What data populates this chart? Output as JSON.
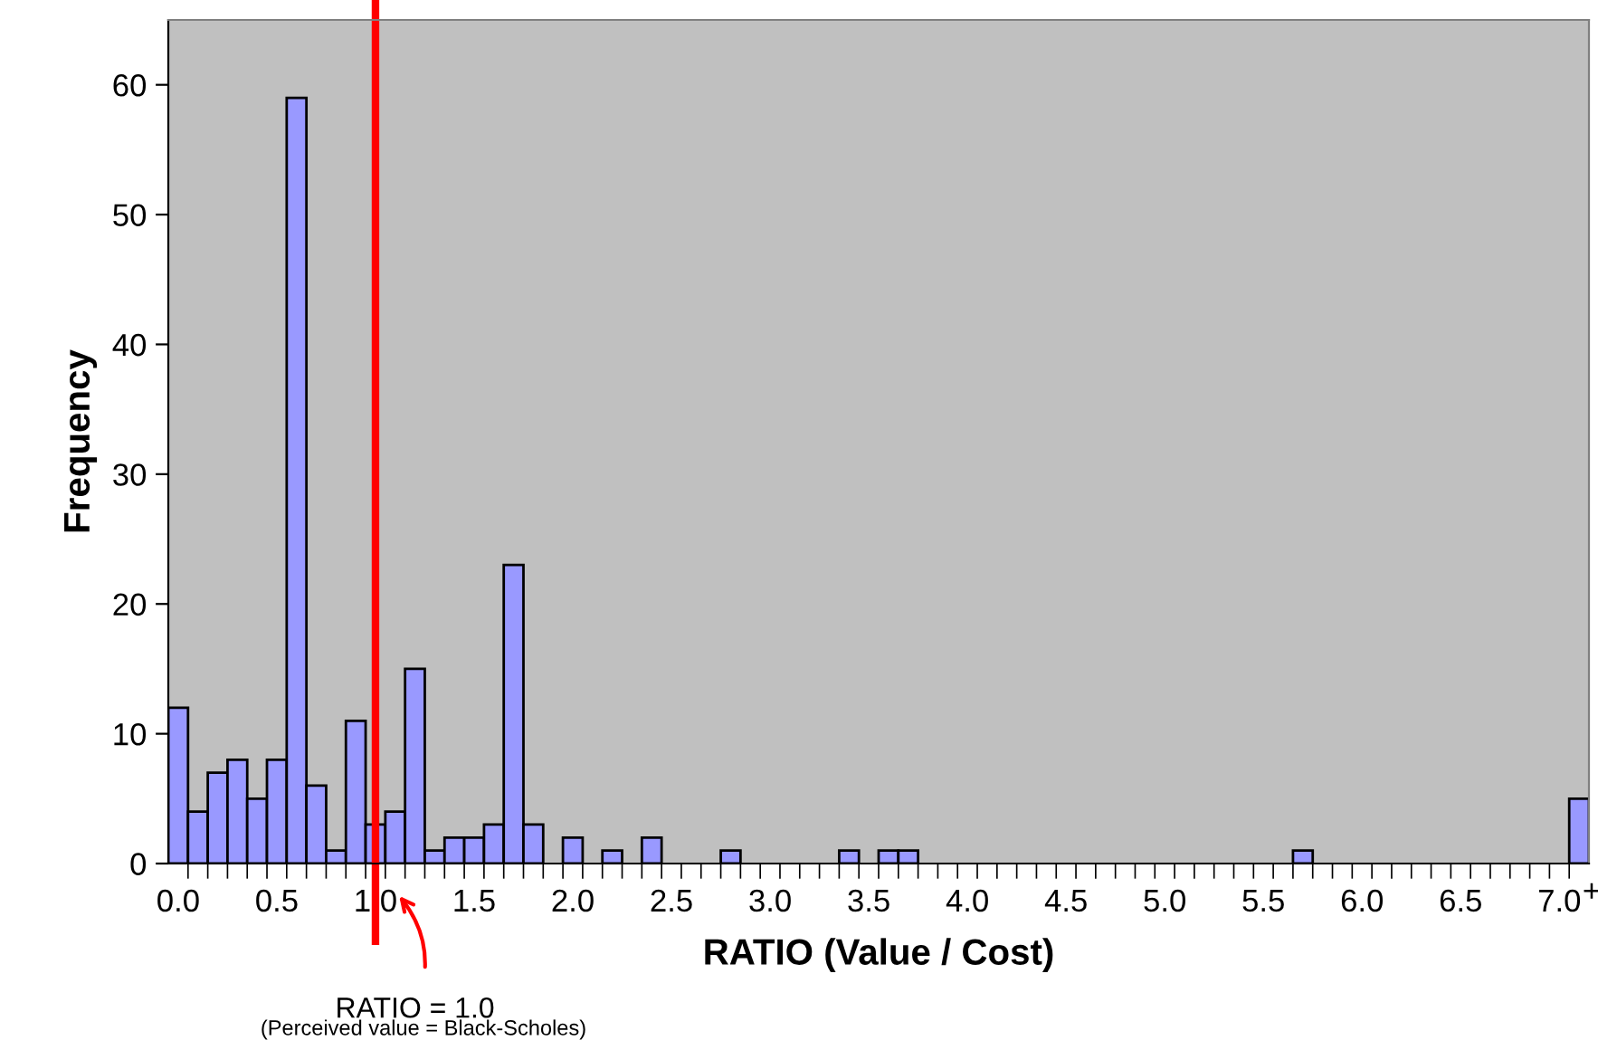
{
  "chart_data": {
    "type": "bar",
    "xlabel": "RATIO (Value / Cost)",
    "ylabel": "Frequency",
    "categories": [
      "0.0",
      null,
      null,
      null,
      null,
      "0.5",
      null,
      null,
      null,
      null,
      "1.0",
      null,
      null,
      null,
      null,
      "1.5",
      null,
      null,
      null,
      null,
      "2.0",
      null,
      null,
      null,
      null,
      "2.5",
      null,
      null,
      null,
      null,
      "3.0",
      null,
      null,
      null,
      null,
      "3.5",
      null,
      null,
      null,
      null,
      "4.0",
      null,
      null,
      null,
      null,
      "4.5",
      null,
      null,
      null,
      null,
      "5.0",
      null,
      null,
      null,
      null,
      "5.5",
      null,
      null,
      null,
      null,
      "6.0",
      null,
      null,
      null,
      null,
      "6.5",
      null,
      null,
      null,
      null,
      "7.0",
      "+"
    ],
    "values": [
      12,
      4,
      7,
      8,
      5,
      8,
      59,
      6,
      1,
      11,
      3,
      4,
      15,
      1,
      2,
      2,
      3,
      23,
      3,
      0,
      2,
      0,
      1,
      0,
      2,
      0,
      0,
      0,
      1,
      0,
      0,
      0,
      0,
      0,
      1,
      0,
      1,
      1,
      0,
      0,
      0,
      0,
      0,
      0,
      0,
      0,
      0,
      0,
      0,
      0,
      0,
      0,
      0,
      0,
      0,
      0,
      0,
      1,
      0,
      0,
      0,
      0,
      0,
      0,
      0,
      0,
      0,
      0,
      0,
      0,
      0,
      5
    ],
    "color": "#9999ff",
    "ylim": [
      0,
      65
    ],
    "yticks": [
      0,
      10,
      20,
      30,
      40,
      50,
      60
    ],
    "ref_lines": [
      {
        "axis": "x",
        "value": "1.0",
        "label": "RATIO = 1.0",
        "color": "#ff0000"
      }
    ],
    "annotations": [
      "(Perceived value = Black-Scholes)"
    ]
  }
}
